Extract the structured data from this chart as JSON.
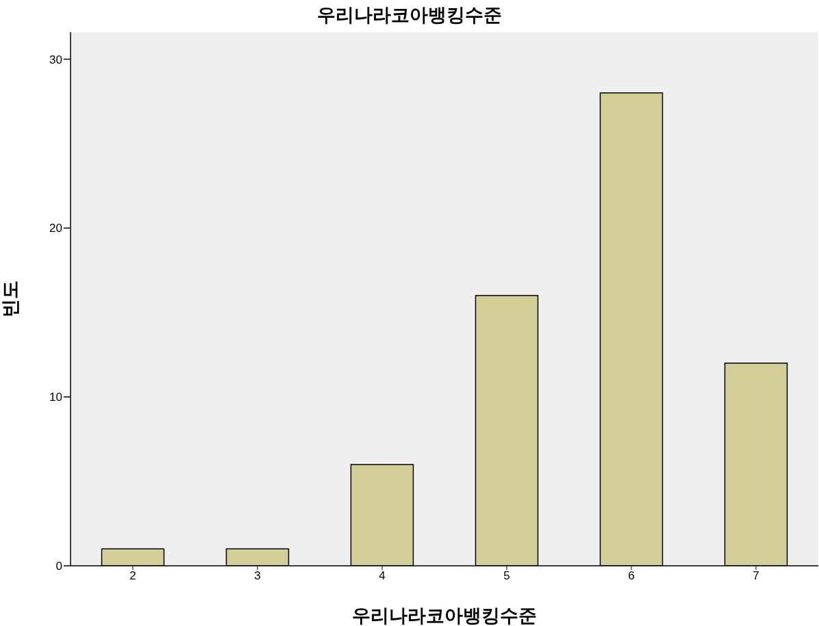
{
  "chart_data": {
    "type": "bar",
    "title": "우리나라코아뱅킹수준",
    "xlabel": "우리나라코아뱅킹수준",
    "ylabel": "빈도",
    "categories": [
      "2",
      "3",
      "4",
      "5",
      "6",
      "7"
    ],
    "values": [
      1,
      1,
      6,
      16,
      28,
      12
    ],
    "color": "#d3ce97",
    "ylim": [
      0,
      31.6
    ],
    "yticks": [
      0,
      10,
      20,
      30
    ],
    "grid": false,
    "legend": false
  }
}
